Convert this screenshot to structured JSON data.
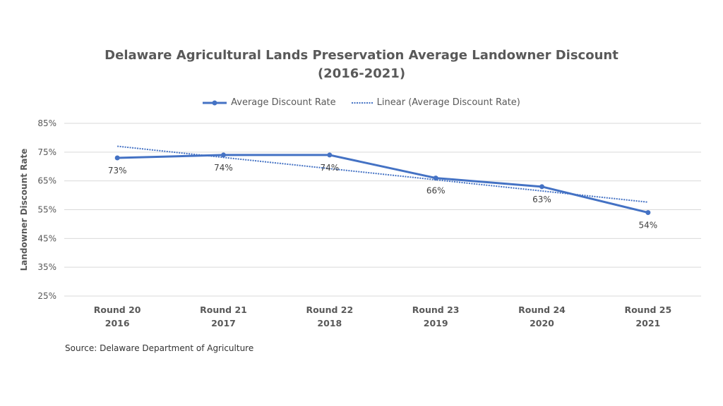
{
  "chart_data": {
    "type": "line",
    "title": "Delaware Agricultural Lands Preservation Average Landowner Discount",
    "subtitle": "(2016-2021)",
    "categories": [
      [
        "Round 20",
        "2016"
      ],
      [
        "Round 21",
        "2017"
      ],
      [
        "Round 22",
        "2018"
      ],
      [
        "Round 23",
        "2019"
      ],
      [
        "Round 24",
        "2020"
      ],
      [
        "Round 25",
        "2021"
      ]
    ],
    "series": [
      {
        "name": "Average Discount Rate",
        "values": [
          73,
          74,
          74,
          66,
          63,
          54
        ],
        "data_labels": [
          "73%",
          "74%",
          "74%",
          "66%",
          "63%",
          "54%"
        ],
        "color": "#4472C4"
      }
    ],
    "trendline": {
      "name": "Linear (Average Discount Rate)",
      "type": "linear",
      "of_series": "Average Discount Rate",
      "color": "#4472C4"
    },
    "ylabel": "Landowner Discount Rate",
    "xlabel": "",
    "ylim": [
      25,
      85
    ],
    "yticks": [
      "25%",
      "35%",
      "45%",
      "55%",
      "65%",
      "75%",
      "85%"
    ],
    "grid": true,
    "legend_position": "top"
  },
  "source": "Source: Delaware Department of Agriculture"
}
